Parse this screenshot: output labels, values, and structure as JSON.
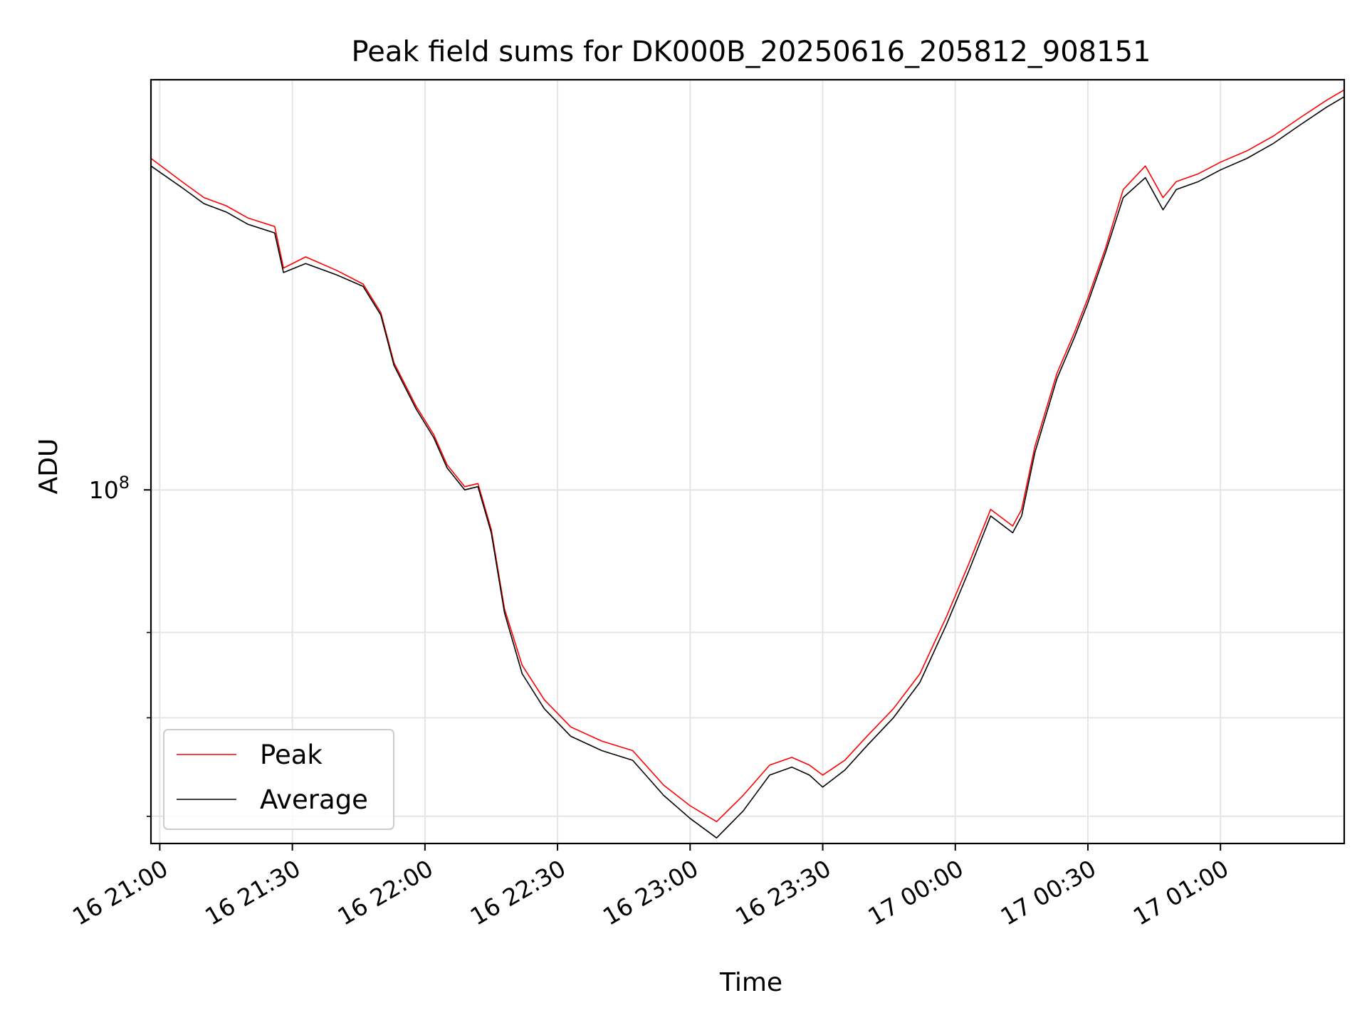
{
  "chart_data": {
    "type": "line",
    "title": "Peak field sums for DK000B_20250616_205812_908151",
    "xlabel": "Time",
    "ylabel": "ADU",
    "y_scale": "log",
    "y_major_tick_label": {
      "base": "10",
      "exponent": "8",
      "value": 100000000
    },
    "y_minor_ticks": [
      60000000,
      70000000,
      80000000
    ],
    "ylim": [
      57500000,
      190000000
    ],
    "xlim": [
      "16 20:58",
      "17 01:28"
    ],
    "x_ticks": [
      {
        "t": "16 21:00",
        "label": "16 21:00"
      },
      {
        "t": "16 21:30",
        "label": "16 21:30"
      },
      {
        "t": "16 22:00",
        "label": "16 22:00"
      },
      {
        "t": "16 22:30",
        "label": "16 22:30"
      },
      {
        "t": "16 23:00",
        "label": "16 23:00"
      },
      {
        "t": "16 23:30",
        "label": "16 23:30"
      },
      {
        "t": "17 00:00",
        "label": "17 00:00"
      },
      {
        "t": "17 00:30",
        "label": "17 00:30"
      },
      {
        "t": "17 01:00",
        "label": "17 01:00"
      }
    ],
    "grid": true,
    "legend_position": "lower-left",
    "series": [
      {
        "name": "Peak",
        "color": "#ff0000",
        "points": [
          [
            "16 20:58",
            168000000
          ],
          [
            "16 21:05",
            162000000
          ],
          [
            "16 21:10",
            158000000
          ],
          [
            "16 21:15",
            156000000
          ],
          [
            "16 21:20",
            153000000
          ],
          [
            "16 21:26",
            151000000
          ],
          [
            "16 21:28",
            141500000
          ],
          [
            "16 21:33",
            144000000
          ],
          [
            "16 21:40",
            141000000
          ],
          [
            "16 21:46",
            138000000
          ],
          [
            "16 21:50",
            132000000
          ],
          [
            "16 21:53",
            122000000
          ],
          [
            "16 21:58",
            114000000
          ],
          [
            "16 22:02",
            109000000
          ],
          [
            "16 22:05",
            104000000
          ],
          [
            "16 22:09",
            100500000
          ],
          [
            "16 22:12",
            101000000
          ],
          [
            "16 22:15",
            94000000
          ],
          [
            "16 22:18",
            83000000
          ],
          [
            "16 22:22",
            76000000
          ],
          [
            "16 22:27",
            72000000
          ],
          [
            "16 22:33",
            69000000
          ],
          [
            "16 22:40",
            67500000
          ],
          [
            "16 22:47",
            66500000
          ],
          [
            "16 22:54",
            63000000
          ],
          [
            "16 23:00",
            61000000
          ],
          [
            "16 23:06",
            59500000
          ],
          [
            "16 23:12",
            62000000
          ],
          [
            "16 23:18",
            65000000
          ],
          [
            "16 23:23",
            65800000
          ],
          [
            "16 23:27",
            65000000
          ],
          [
            "16 23:30",
            64000000
          ],
          [
            "16 23:35",
            65500000
          ],
          [
            "16 23:40",
            68000000
          ],
          [
            "16 23:46",
            71000000
          ],
          [
            "16 23:52",
            75000000
          ],
          [
            "16 23:58",
            82000000
          ],
          [
            "17 00:03",
            89000000
          ],
          [
            "17 00:08",
            97000000
          ],
          [
            "17 00:13",
            94500000
          ],
          [
            "17 00:15",
            97000000
          ],
          [
            "17 00:18",
            107000000
          ],
          [
            "17 00:23",
            120000000
          ],
          [
            "17 00:27",
            128000000
          ],
          [
            "17 00:30",
            135000000
          ],
          [
            "17 00:34",
            146000000
          ],
          [
            "17 00:38",
            160000000
          ],
          [
            "17 00:43",
            166000000
          ],
          [
            "17 00:47",
            158000000
          ],
          [
            "17 00:50",
            162000000
          ],
          [
            "17 00:55",
            164000000
          ],
          [
            "17 01:00",
            167000000
          ],
          [
            "17 01:06",
            170000000
          ],
          [
            "17 01:12",
            174000000
          ],
          [
            "17 01:18",
            179000000
          ],
          [
            "17 01:24",
            184000000
          ],
          [
            "17 01:28",
            187000000
          ]
        ]
      },
      {
        "name": "Average",
        "color": "#000000",
        "points": [
          [
            "16 20:58",
            166000000
          ],
          [
            "16 21:05",
            160500000
          ],
          [
            "16 21:10",
            156500000
          ],
          [
            "16 21:15",
            154500000
          ],
          [
            "16 21:20",
            151500000
          ],
          [
            "16 21:26",
            149500000
          ],
          [
            "16 21:28",
            140500000
          ],
          [
            "16 21:33",
            142500000
          ],
          [
            "16 21:40",
            140000000
          ],
          [
            "16 21:46",
            137500000
          ],
          [
            "16 21:50",
            131500000
          ],
          [
            "16 21:53",
            121500000
          ],
          [
            "16 21:58",
            113500000
          ],
          [
            "16 22:02",
            108500000
          ],
          [
            "16 22:05",
            103500000
          ],
          [
            "16 22:09",
            100000000
          ],
          [
            "16 22:12",
            100500000
          ],
          [
            "16 22:15",
            93500000
          ],
          [
            "16 22:18",
            82500000
          ],
          [
            "16 22:22",
            75000000
          ],
          [
            "16 22:27",
            71000000
          ],
          [
            "16 22:33",
            68000000
          ],
          [
            "16 22:40",
            66500000
          ],
          [
            "16 22:47",
            65500000
          ],
          [
            "16 22:54",
            62000000
          ],
          [
            "16 23:00",
            59800000
          ],
          [
            "16 23:06",
            58000000
          ],
          [
            "16 23:12",
            60500000
          ],
          [
            "16 23:18",
            64000000
          ],
          [
            "16 23:23",
            64800000
          ],
          [
            "16 23:27",
            64000000
          ],
          [
            "16 23:30",
            62800000
          ],
          [
            "16 23:35",
            64500000
          ],
          [
            "16 23:40",
            67000000
          ],
          [
            "16 23:46",
            70000000
          ],
          [
            "16 23:52",
            74000000
          ],
          [
            "16 23:58",
            81000000
          ],
          [
            "17 00:03",
            88000000
          ],
          [
            "17 00:08",
            96000000
          ],
          [
            "17 00:13",
            93500000
          ],
          [
            "17 00:15",
            96000000
          ],
          [
            "17 00:18",
            106000000
          ],
          [
            "17 00:23",
            119000000
          ],
          [
            "17 00:27",
            127000000
          ],
          [
            "17 00:30",
            134000000
          ],
          [
            "17 00:34",
            145000000
          ],
          [
            "17 00:38",
            158000000
          ],
          [
            "17 00:43",
            163000000
          ],
          [
            "17 00:47",
            155000000
          ],
          [
            "17 00:50",
            160000000
          ],
          [
            "17 00:55",
            162000000
          ],
          [
            "17 01:00",
            165000000
          ],
          [
            "17 01:06",
            168000000
          ],
          [
            "17 01:12",
            172000000
          ],
          [
            "17 01:18",
            177000000
          ],
          [
            "17 01:24",
            182000000
          ],
          [
            "17 01:28",
            185000000
          ]
        ]
      }
    ]
  }
}
